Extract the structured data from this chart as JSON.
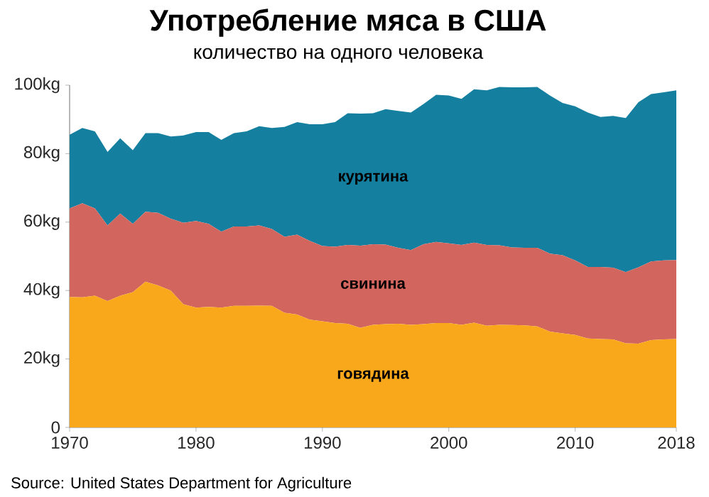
{
  "chart_data": {
    "type": "area",
    "stacked": true,
    "title": "Употребление мяса в США",
    "subtitle": "количество на одного человека",
    "x": [
      1970,
      1971,
      1972,
      1973,
      1974,
      1975,
      1976,
      1977,
      1978,
      1979,
      1980,
      1981,
      1982,
      1983,
      1984,
      1985,
      1986,
      1987,
      1988,
      1989,
      1990,
      1991,
      1992,
      1993,
      1994,
      1995,
      1996,
      1997,
      1998,
      1999,
      2000,
      2001,
      2002,
      2003,
      2004,
      2005,
      2006,
      2007,
      2008,
      2009,
      2010,
      2011,
      2012,
      2013,
      2014,
      2015,
      2016,
      2017,
      2018
    ],
    "series": [
      {
        "name": "говядина",
        "color": "#f9a81b",
        "values": [
          38.1,
          38,
          38.5,
          36.9,
          38.5,
          39.5,
          42.6,
          41.5,
          40,
          36,
          35,
          35.2,
          35,
          35.5,
          35.5,
          35.6,
          35.5,
          33.5,
          33,
          31.5,
          31,
          30.5,
          30.3,
          29.1,
          30,
          30.2,
          30.3,
          30,
          30.2,
          30.5,
          30.5,
          30,
          30.6,
          29.7,
          30,
          29.9,
          29.8,
          29.5,
          28,
          27.5,
          27,
          26,
          25.8,
          25.7,
          24.6,
          24.5,
          25.5,
          25.7,
          25.8
        ]
      },
      {
        "name": "свинина",
        "color": "#d2665f",
        "values": [
          25.9,
          27.5,
          25.5,
          22.1,
          24,
          20,
          20.4,
          21.2,
          21,
          23.8,
          25.3,
          24.3,
          22.2,
          23.2,
          23.2,
          23.4,
          22.5,
          22.2,
          23.3,
          23,
          22,
          22.3,
          23,
          24,
          23.5,
          23.2,
          22.2,
          21.8,
          23.3,
          23.7,
          23.3,
          23.3,
          23.4,
          23.6,
          23.2,
          22.7,
          22.7,
          23,
          22.8,
          22.8,
          21.8,
          20.9,
          21.1,
          21,
          20.8,
          22.3,
          23,
          23.1,
          23.1
        ]
      },
      {
        "name": "курятина",
        "color": "#157fa0",
        "values": [
          21.5,
          22,
          22.5,
          21.5,
          22,
          21.5,
          23,
          23.3,
          24,
          25.5,
          26,
          26.8,
          26.8,
          27.3,
          27.8,
          29,
          29.5,
          32.1,
          32.9,
          34.1,
          35.6,
          36.4,
          38.5,
          38.6,
          38.3,
          39.6,
          40,
          40.2,
          41,
          43,
          43.2,
          42.7,
          44.8,
          45.2,
          46.3,
          46.8,
          46.9,
          47,
          46.2,
          44.5,
          45,
          45.1,
          43.8,
          44.3,
          45,
          48.2,
          48.9,
          49.1,
          49.6
        ]
      }
    ],
    "xlim": [
      1970,
      2018
    ],
    "xticks": [
      1970,
      1980,
      1990,
      2000,
      2010,
      2018
    ],
    "ylim": [
      0,
      100
    ],
    "yticks": [
      0,
      {
        "value": 20,
        "label": "20kg"
      },
      {
        "value": 40,
        "label": "40kg"
      },
      {
        "value": 60,
        "label": "60kg"
      },
      {
        "value": 80,
        "label": "80kg"
      },
      {
        "value": 100,
        "label": "100kg"
      }
    ],
    "annotations": [
      "Source: United States Department for Agriculture"
    ]
  }
}
